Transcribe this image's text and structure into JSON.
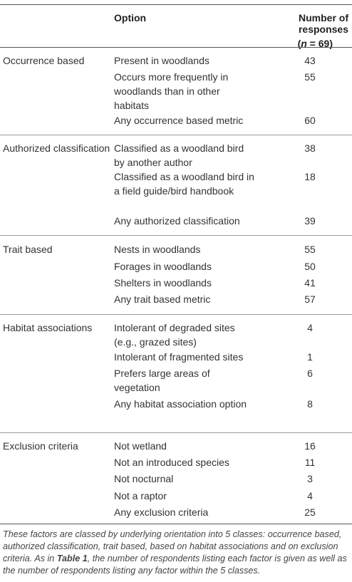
{
  "header": {
    "option": "Option",
    "responses_line1": "Number of responses",
    "responses_line2_prefix": "(",
    "responses_line2_n": "n",
    "responses_line2_suffix": " = 69)"
  },
  "groups": [
    {
      "category": "Occurrence based",
      "rows": [
        {
          "option": "Present in woodlands",
          "count": "43"
        },
        {
          "option": "Occurs more frequently in woodlands than in other habitats",
          "count": "55"
        },
        {
          "option": "Any occurrence based metric",
          "count": "60"
        }
      ]
    },
    {
      "category": "Authorized classification",
      "rows": [
        {
          "option": "Classified as a woodland bird by another author",
          "count": "38"
        },
        {
          "option": "Classified as a woodland bird in a field guide/bird handbook",
          "count": "18"
        },
        {
          "option": "Any authorized classification",
          "count": "39"
        }
      ]
    },
    {
      "category": "Trait based",
      "rows": [
        {
          "option": "Nests in woodlands",
          "count": "55"
        },
        {
          "option": "Forages in woodlands",
          "count": "50"
        },
        {
          "option": "Shelters in woodlands",
          "count": "41"
        },
        {
          "option": "Any trait based metric",
          "count": "57"
        }
      ]
    },
    {
      "category": "Habitat associations",
      "rows": [
        {
          "option": "Intolerant of degraded sites (e.g., grazed sites)",
          "count": "4"
        },
        {
          "option": "Intolerant of fragmented sites",
          "count": "1"
        },
        {
          "option": "Prefers large areas of vegetation",
          "count": "6"
        },
        {
          "option": "Any habitat association option",
          "count": "8"
        }
      ]
    },
    {
      "category": "Exclusion criteria",
      "rows": [
        {
          "option": "Not wetland",
          "count": "16"
        },
        {
          "option": "Not an introduced species",
          "count": "11"
        },
        {
          "option": "Not nocturnal",
          "count": "3"
        },
        {
          "option": "Not a raptor",
          "count": "4"
        },
        {
          "option": "Any exclusion criteria",
          "count": "25"
        }
      ]
    }
  ],
  "caption": {
    "part1": "These factors are classed by underlying orientation into 5 classes: occurrence based, authorized classification, trait based, based on habitat associations and on exclusion criteria. As in ",
    "table_ref": "Table 1",
    "part2": ", the number of respondents listing each factor is given as well as the number of respondents listing any factor within the 5 classes."
  }
}
